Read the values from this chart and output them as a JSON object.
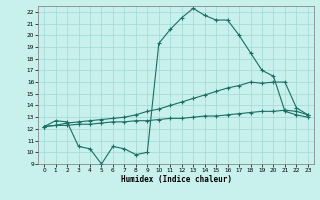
{
  "xlabel": "Humidex (Indice chaleur)",
  "bg_color": "#c8f0ec",
  "grid_color": "#a0d8d4",
  "line_color": "#1a6e66",
  "xlim": [
    -0.5,
    23.5
  ],
  "ylim": [
    9,
    22.5
  ],
  "yticks": [
    9,
    10,
    11,
    12,
    13,
    14,
    15,
    16,
    17,
    18,
    19,
    20,
    21,
    22
  ],
  "xticks": [
    0,
    1,
    2,
    3,
    4,
    5,
    6,
    7,
    8,
    9,
    10,
    11,
    12,
    13,
    14,
    15,
    16,
    17,
    18,
    19,
    20,
    21,
    22,
    23
  ],
  "curve1_x": [
    0,
    1,
    2,
    3,
    4,
    5,
    6,
    7,
    8,
    9,
    10,
    11,
    12,
    13,
    14,
    15,
    16,
    17,
    18,
    19,
    20,
    21,
    22,
    23
  ],
  "curve1_y": [
    12.2,
    12.7,
    12.6,
    10.5,
    10.3,
    9.0,
    10.5,
    10.3,
    9.8,
    10.0,
    19.3,
    20.5,
    21.5,
    22.3,
    21.7,
    21.3,
    21.3,
    20.0,
    18.5,
    17.0,
    16.5,
    13.5,
    13.2,
    13.0
  ],
  "curve2_x": [
    0,
    1,
    2,
    3,
    4,
    5,
    6,
    7,
    8,
    9,
    10,
    11,
    12,
    13,
    14,
    15,
    16,
    17,
    18,
    19,
    20,
    21,
    22,
    23
  ],
  "curve2_y": [
    12.2,
    12.3,
    12.5,
    12.6,
    12.7,
    12.8,
    12.9,
    13.0,
    13.2,
    13.5,
    13.7,
    14.0,
    14.3,
    14.6,
    14.9,
    15.2,
    15.5,
    15.7,
    16.0,
    15.9,
    16.0,
    16.0,
    13.8,
    13.2
  ],
  "curve3_x": [
    0,
    1,
    2,
    3,
    4,
    5,
    6,
    7,
    8,
    9,
    10,
    11,
    12,
    13,
    14,
    15,
    16,
    17,
    18,
    19,
    20,
    21,
    22,
    23
  ],
  "curve3_y": [
    12.2,
    12.3,
    12.3,
    12.4,
    12.4,
    12.5,
    12.6,
    12.6,
    12.7,
    12.7,
    12.8,
    12.9,
    12.9,
    13.0,
    13.1,
    13.1,
    13.2,
    13.3,
    13.4,
    13.5,
    13.5,
    13.6,
    13.5,
    13.2
  ]
}
